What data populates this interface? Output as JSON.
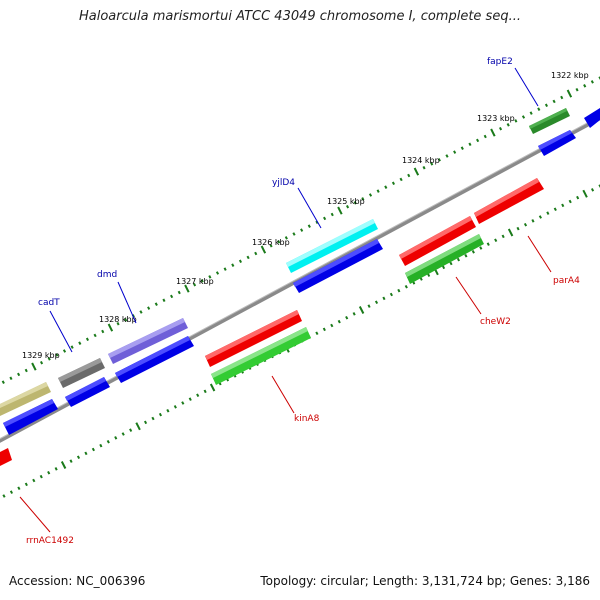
{
  "title": "Haloarcula marismortui ATCC 43049 chromosome I, complete seq...",
  "accession": "Accession: NC_006396",
  "topology": "Topology: circular; Length: 3,131,724 bp; Genes: 3,186",
  "colors": {
    "backbone": "#888888",
    "forward_cds": "#0000ff",
    "reverse_cds": "#ff0000",
    "tick": "#1a7a1a",
    "forward_label": "#0000aa",
    "reverse_label": "#cc0000"
  },
  "ticks": [
    {
      "label": "1322 kbp"
    },
    {
      "label": "1323 kbp"
    },
    {
      "label": "1324 kbp"
    },
    {
      "label": "1325 kbp"
    },
    {
      "label": "1326 kbp"
    },
    {
      "label": "1327 kbp"
    },
    {
      "label": "1328 kbp"
    },
    {
      "label": "1329 kbp"
    }
  ],
  "genes": [
    {
      "name": "fapE2",
      "strand": "forward",
      "color": "#2e8b2e"
    },
    {
      "name": "yjlD4",
      "strand": "forward",
      "color": "#00ffff"
    },
    {
      "name": "dmd",
      "strand": "forward",
      "color": "#7b68ee"
    },
    {
      "name": "cadT",
      "strand": "forward",
      "color": "#707070"
    },
    {
      "name": "",
      "strand": "forward",
      "color": "#c8c080"
    },
    {
      "name": "parA4",
      "strand": "reverse",
      "color": "#00cc00"
    },
    {
      "name": "cheW2",
      "strand": "reverse",
      "color": "#33cc33"
    },
    {
      "name": "kinA8",
      "strand": "reverse",
      "color": "#33cc33"
    },
    {
      "name": "rrnAC1492",
      "strand": "reverse",
      "color": "#ff0000"
    }
  ]
}
